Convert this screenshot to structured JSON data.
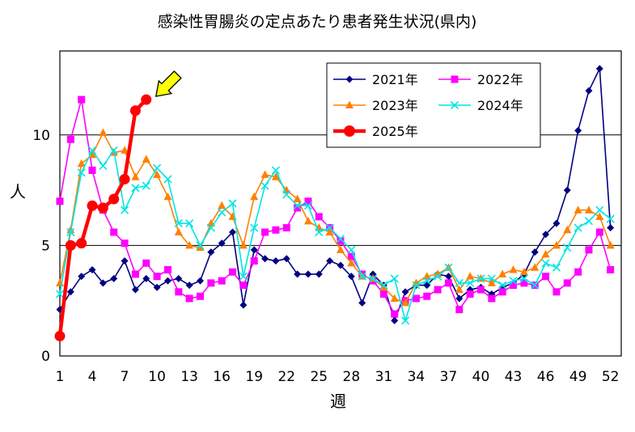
{
  "chart_data": {
    "type": "line",
    "title": "感染性胃腸炎の定点あたり患者発生状況(県内)",
    "xlabel": "週",
    "ylabel": "人",
    "x_ticks": [
      1,
      4,
      7,
      10,
      13,
      16,
      19,
      22,
      25,
      28,
      31,
      34,
      37,
      40,
      43,
      46,
      49,
      52
    ],
    "y_ticks": [
      0,
      5,
      10
    ],
    "xlim": [
      1,
      53
    ],
    "ylim": [
      0,
      13.8
    ],
    "grid": "horizontal",
    "legend_position": "top-right",
    "series": [
      {
        "name": "2021年",
        "color": "#000080",
        "marker": "diamond",
        "values": [
          2.1,
          2.9,
          3.6,
          3.9,
          3.3,
          3.5,
          4.3,
          3.0,
          3.5,
          3.1,
          3.4,
          3.5,
          3.2,
          3.4,
          4.7,
          5.1,
          5.6,
          2.3,
          4.8,
          4.4,
          4.3,
          4.4,
          3.7,
          3.7,
          3.7,
          4.3,
          4.1,
          3.6,
          2.4,
          3.7,
          3.2,
          1.6,
          2.9,
          3.2,
          3.2,
          3.7,
          3.6,
          2.6,
          3.0,
          3.1,
          2.8,
          3.1,
          3.3,
          3.7,
          4.7,
          5.5,
          6.0,
          7.5,
          10.2,
          12.0,
          13.0,
          5.8
        ]
      },
      {
        "name": "2022年",
        "color": "#ff00ff",
        "marker": "square",
        "values": [
          7.0,
          9.8,
          11.6,
          8.4,
          6.6,
          5.6,
          5.1,
          3.7,
          4.2,
          3.6,
          3.9,
          2.9,
          2.6,
          2.7,
          3.3,
          3.4,
          3.8,
          3.2,
          4.3,
          5.6,
          5.7,
          5.8,
          6.7,
          7.0,
          6.3,
          5.8,
          5.2,
          4.5,
          3.7,
          3.4,
          2.8,
          1.9,
          2.5,
          2.6,
          2.7,
          3.0,
          3.3,
          2.1,
          2.8,
          3.0,
          2.6,
          2.9,
          3.2,
          3.3,
          3.2,
          3.6,
          2.9,
          3.3,
          3.8,
          4.8,
          5.6,
          3.9
        ]
      },
      {
        "name": "2023年",
        "color": "#ff8000",
        "marker": "triangle",
        "values": [
          3.3,
          5.7,
          8.7,
          9.1,
          10.1,
          9.2,
          9.3,
          8.1,
          8.9,
          8.2,
          7.2,
          5.6,
          5.0,
          4.9,
          6.0,
          6.8,
          6.3,
          5.0,
          7.2,
          8.2,
          8.1,
          7.5,
          7.1,
          6.1,
          5.8,
          5.6,
          4.8,
          4.2,
          3.6,
          3.5,
          3.1,
          2.6,
          2.4,
          3.3,
          3.6,
          3.7,
          4.0,
          3.0,
          3.6,
          3.5,
          3.3,
          3.7,
          3.9,
          3.8,
          4.0,
          4.6,
          5.0,
          5.7,
          6.6,
          6.6,
          6.3,
          5.0
        ]
      },
      {
        "name": "2024年",
        "color": "#00e5e5",
        "marker": "x",
        "values": [
          2.8,
          5.6,
          8.3,
          9.3,
          8.6,
          9.3,
          6.6,
          7.6,
          7.7,
          8.5,
          8.0,
          6.0,
          6.0,
          5.0,
          5.8,
          6.5,
          6.9,
          3.6,
          5.8,
          7.7,
          8.4,
          7.3,
          6.8,
          6.8,
          5.6,
          5.8,
          5.3,
          4.8,
          3.6,
          3.5,
          3.2,
          3.5,
          1.6,
          3.2,
          3.4,
          3.6,
          4.0,
          3.3,
          3.3,
          3.5,
          3.5,
          3.2,
          3.4,
          3.5,
          3.2,
          4.2,
          4.0,
          4.9,
          5.8,
          6.1,
          6.6,
          6.2
        ]
      },
      {
        "name": "2025年",
        "color": "#ff0000",
        "marker": "circle",
        "values": [
          0.9,
          5.0,
          5.1,
          6.8,
          6.7,
          7.1,
          8.0,
          11.1,
          11.6
        ]
      }
    ],
    "annotation": {
      "type": "arrow",
      "color": "#ffff00",
      "points_to_week": 9
    }
  }
}
